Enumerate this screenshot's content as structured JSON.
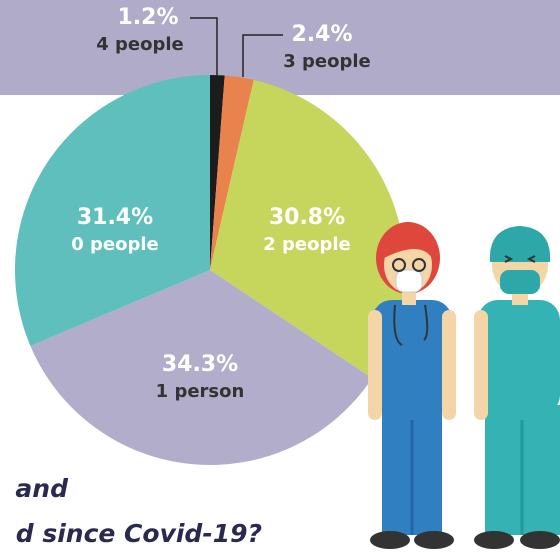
{
  "chart_data": {
    "type": "pie",
    "categories": [
      "4 people",
      "3 people",
      "2 people",
      "1 person",
      "0 people"
    ],
    "values": [
      1.2,
      2.4,
      30.8,
      34.3,
      31.4
    ],
    "value_labels": [
      "1.2%",
      "2.4%",
      "30.8%",
      "34.3%",
      "31.4%"
    ],
    "colors": [
      "#1c1c1c",
      "#e8834e",
      "#c6d65c",
      "#b2adcb",
      "#5fbfbd"
    ],
    "caption": [
      "and",
      "d since Covid-19?"
    ]
  }
}
